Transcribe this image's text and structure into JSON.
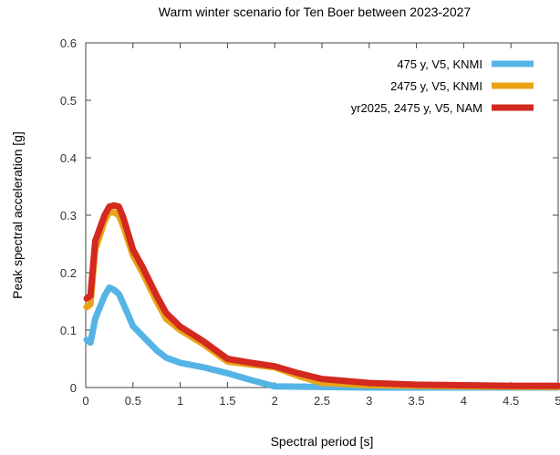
{
  "chart_data": {
    "type": "line",
    "title": "Warm winter scenario for Ten Boer between 2023-2027",
    "xlabel": "Spectral period [s]",
    "ylabel": "Peak spectral acceleration [g]",
    "xlim": [
      0,
      5
    ],
    "ylim": [
      0,
      0.6
    ],
    "x_ticks": [
      "0",
      "0.5",
      "1",
      "1.5",
      "2",
      "2.5",
      "3",
      "3.5",
      "4",
      "4.5",
      "5"
    ],
    "y_ticks": [
      "0",
      "0.1",
      "0.2",
      "0.3",
      "0.4",
      "0.5",
      "0.6"
    ],
    "grid": false,
    "legend_position": "top-right",
    "series": [
      {
        "name": "475 y, V5, KNMI",
        "color": "#55b4e6",
        "x": [
          0.01,
          0.05,
          0.1,
          0.2,
          0.25,
          0.3,
          0.35,
          0.4,
          0.5,
          0.6,
          0.75,
          0.85,
          1.0,
          1.25,
          1.5,
          1.75,
          2.0,
          2.5,
          3.0,
          4.0,
          5.0
        ],
        "y": [
          0.083,
          0.078,
          0.12,
          0.16,
          0.174,
          0.17,
          0.163,
          0.145,
          0.107,
          0.09,
          0.065,
          0.052,
          0.043,
          0.035,
          0.025,
          0.013,
          0.002,
          0.001,
          0.0,
          0.0,
          0.0
        ]
      },
      {
        "name": "2475 y, V5, KNMI",
        "color": "#e8a317",
        "x": [
          0.01,
          0.05,
          0.1,
          0.2,
          0.25,
          0.3,
          0.35,
          0.4,
          0.5,
          0.6,
          0.75,
          0.85,
          1.0,
          1.25,
          1.5,
          1.75,
          2.0,
          2.25,
          2.5,
          3.0,
          4.0,
          5.0
        ],
        "y": [
          0.14,
          0.145,
          0.24,
          0.29,
          0.305,
          0.305,
          0.3,
          0.28,
          0.23,
          0.2,
          0.15,
          0.12,
          0.1,
          0.075,
          0.045,
          0.04,
          0.035,
          0.02,
          0.008,
          0.004,
          0.002,
          0.001
        ]
      },
      {
        "name": "yr2025, 2475 y, V5, NAM",
        "color": "#d3291f",
        "x": [
          0.01,
          0.05,
          0.1,
          0.2,
          0.25,
          0.3,
          0.35,
          0.4,
          0.5,
          0.6,
          0.75,
          0.85,
          1.0,
          1.25,
          1.5,
          1.75,
          2.0,
          2.25,
          2.5,
          3.0,
          3.5,
          4.0,
          4.5,
          5.0
        ],
        "y": [
          0.155,
          0.16,
          0.255,
          0.3,
          0.315,
          0.317,
          0.315,
          0.295,
          0.24,
          0.21,
          0.16,
          0.13,
          0.106,
          0.08,
          0.05,
          0.043,
          0.037,
          0.025,
          0.015,
          0.008,
          0.005,
          0.004,
          0.003,
          0.003
        ]
      }
    ]
  }
}
